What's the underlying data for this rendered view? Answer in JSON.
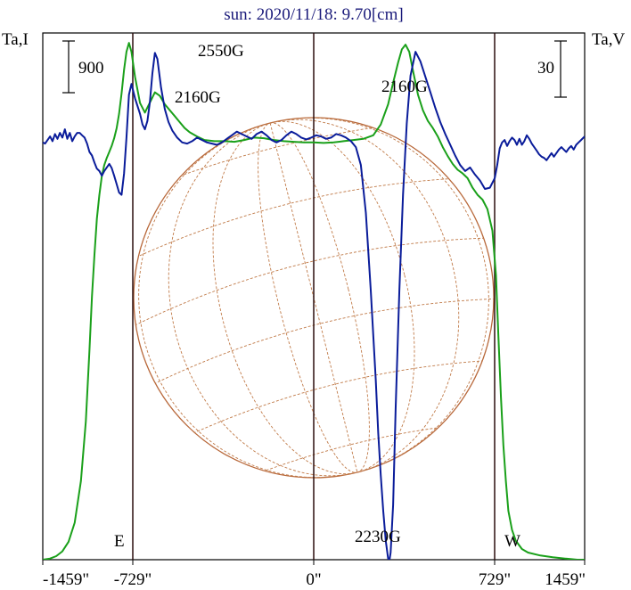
{
  "chart_data": {
    "type": "line",
    "title": "sun: 2020/11/18: 9.70[cm]",
    "y_left_label": "Ta,I",
    "y_right_label": "Ta,V",
    "scale_bar_left": "900",
    "scale_bar_right": "30",
    "x_ticks": [
      {
        "value": -1459,
        "label": "-1459\""
      },
      {
        "value": -729,
        "label": "-729\""
      },
      {
        "value": 0,
        "label": "0\""
      },
      {
        "value": 729,
        "label": "729\""
      },
      {
        "value": 1459,
        "label": "1459\""
      }
    ],
    "xlim": [
      -1459,
      1459
    ],
    "limb_markers": [
      {
        "x": -729,
        "label": ""
      },
      {
        "x": 0,
        "label": ""
      },
      {
        "x": 729,
        "label": ""
      }
    ],
    "limb_edges": {
      "east_x": -729,
      "west_x": 729,
      "east_label": "E",
      "west_label": "W"
    },
    "annotations": [
      {
        "text": "2550G"
      },
      {
        "text": "2160G"
      },
      {
        "text": "2160G"
      },
      {
        "text": "2230G"
      }
    ],
    "colors": {
      "stokes_i": "#1aa01a",
      "stokes_v": "#0a1c9a",
      "disk": "#b8683a",
      "axes": "#000000",
      "limb": "#2b0f0f"
    },
    "series": [
      {
        "name": "",
        "color": "#1aa01a",
        "points": [
          [
            -1459,
            28
          ],
          [
            -1400,
            30
          ],
          [
            -1350,
            34
          ],
          [
            -1300,
            42
          ],
          [
            -1250,
            58
          ],
          [
            -1200,
            90
          ],
          [
            -1150,
            160
          ],
          [
            -1110,
            260
          ],
          [
            -1080,
            380
          ],
          [
            -1060,
            470
          ],
          [
            -1040,
            540
          ],
          [
            -1020,
            600
          ],
          [
            -1000,
            640
          ],
          [
            -980,
            672
          ],
          [
            -960,
            690
          ],
          [
            -940,
            702
          ],
          [
            -920,
            712
          ],
          [
            -900,
            722
          ],
          [
            -880,
            735
          ],
          [
            -860,
            752
          ],
          [
            -840,
            776
          ],
          [
            -820,
            810
          ],
          [
            -800,
            850
          ],
          [
            -780,
            880
          ],
          [
            -760,
            895
          ],
          [
            -740,
            880
          ],
          [
            -720,
            838
          ],
          [
            -700,
            794
          ],
          [
            -680,
            778
          ],
          [
            -660,
            795
          ],
          [
            -640,
            812
          ],
          [
            -620,
            806
          ],
          [
            -600,
            792
          ],
          [
            -580,
            782
          ],
          [
            -560,
            772
          ],
          [
            -540,
            762
          ],
          [
            -520,
            752
          ],
          [
            -500,
            745
          ],
          [
            -470,
            738
          ],
          [
            -440,
            732
          ],
          [
            -400,
            730
          ],
          [
            -360,
            730
          ],
          [
            -320,
            729
          ],
          [
            -280,
            732
          ],
          [
            -240,
            736
          ],
          [
            -200,
            735
          ],
          [
            -160,
            732
          ],
          [
            -120,
            730
          ],
          [
            -80,
            729
          ],
          [
            -40,
            728
          ],
          [
            0,
            728
          ],
          [
            40,
            727
          ],
          [
            80,
            728
          ],
          [
            120,
            730
          ],
          [
            160,
            732
          ],
          [
            200,
            734
          ],
          [
            240,
            740
          ],
          [
            270,
            758
          ],
          [
            300,
            792
          ],
          [
            320,
            828
          ],
          [
            340,
            862
          ],
          [
            355,
            884
          ],
          [
            370,
            892
          ],
          [
            385,
            880
          ],
          [
            400,
            848
          ],
          [
            420,
            808
          ],
          [
            440,
            782
          ],
          [
            460,
            764
          ],
          [
            480,
            752
          ],
          [
            500,
            738
          ],
          [
            520,
            720
          ],
          [
            540,
            705
          ],
          [
            560,
            692
          ],
          [
            580,
            682
          ],
          [
            600,
            676
          ],
          [
            620,
            668
          ],
          [
            640,
            652
          ],
          [
            660,
            640
          ],
          [
            680,
            632
          ],
          [
            700,
            616
          ],
          [
            720,
            580
          ],
          [
            740,
            505
          ],
          [
            760,
            400
          ],
          [
            780,
            300
          ],
          [
            800,
            220
          ],
          [
            820,
            160
          ],
          [
            840,
            110
          ],
          [
            870,
            78
          ],
          [
            900,
            60
          ],
          [
            950,
            46
          ],
          [
            1000,
            40
          ],
          [
            1100,
            35
          ],
          [
            1200,
            32
          ],
          [
            1300,
            30
          ],
          [
            1400,
            28
          ],
          [
            1459,
            28
          ]
        ]
      },
      {
        "name": "",
        "color": "#0a1c9a",
        "points": [
          [
            -1459,
            728
          ],
          [
            -1440,
            726
          ],
          [
            -1420,
            732
          ],
          [
            -1400,
            738
          ],
          [
            -1380,
            730
          ],
          [
            -1360,
            742
          ],
          [
            -1340,
            734
          ],
          [
            -1320,
            744
          ],
          [
            -1300,
            736
          ],
          [
            -1280,
            750
          ],
          [
            -1260,
            734
          ],
          [
            -1240,
            744
          ],
          [
            -1220,
            730
          ],
          [
            -1200,
            738
          ],
          [
            -1180,
            744
          ],
          [
            -1160,
            744
          ],
          [
            -1140,
            740
          ],
          [
            -1120,
            736
          ],
          [
            -1100,
            726
          ],
          [
            -1080,
            712
          ],
          [
            -1060,
            706
          ],
          [
            -1040,
            694
          ],
          [
            -1020,
            684
          ],
          [
            -1000,
            680
          ],
          [
            -980,
            672
          ],
          [
            -960,
            680
          ],
          [
            -940,
            686
          ],
          [
            -920,
            692
          ],
          [
            -900,
            685
          ],
          [
            -880,
            672
          ],
          [
            -860,
            658
          ],
          [
            -840,
            644
          ],
          [
            -820,
            640
          ],
          [
            -800,
            676
          ],
          [
            -780,
            736
          ],
          [
            -760,
            808
          ],
          [
            -740,
            826
          ],
          [
            -720,
            802
          ],
          [
            -700,
            776
          ],
          [
            -690,
            758
          ],
          [
            -680,
            750
          ],
          [
            -670,
            764
          ],
          [
            -660,
            796
          ],
          [
            -650,
            844
          ],
          [
            -640,
            878
          ],
          [
            -630,
            868
          ],
          [
            -615,
            820
          ],
          [
            -600,
            784
          ],
          [
            -585,
            762
          ],
          [
            -570,
            748
          ],
          [
            -550,
            736
          ],
          [
            -530,
            728
          ],
          [
            -510,
            726
          ],
          [
            -490,
            730
          ],
          [
            -470,
            736
          ],
          [
            -450,
            732
          ],
          [
            -430,
            728
          ],
          [
            -410,
            726
          ],
          [
            -390,
            724
          ],
          [
            -370,
            728
          ],
          [
            -350,
            734
          ],
          [
            -330,
            740
          ],
          [
            -310,
            746
          ],
          [
            -290,
            742
          ],
          [
            -270,
            738
          ],
          [
            -250,
            734
          ],
          [
            -230,
            742
          ],
          [
            -210,
            746
          ],
          [
            -190,
            740
          ],
          [
            -170,
            732
          ],
          [
            -150,
            728
          ],
          [
            -130,
            732
          ],
          [
            -110,
            740
          ],
          [
            -90,
            746
          ],
          [
            -70,
            742
          ],
          [
            -50,
            736
          ],
          [
            -30,
            733
          ],
          [
            -10,
            736
          ],
          [
            10,
            740
          ],
          [
            30,
            738
          ],
          [
            50,
            734
          ],
          [
            70,
            736
          ],
          [
            90,
            742
          ],
          [
            110,
            740
          ],
          [
            130,
            736
          ],
          [
            150,
            730
          ],
          [
            170,
            720
          ],
          [
            190,
            690
          ],
          [
            210,
            610
          ],
          [
            230,
            480
          ],
          [
            250,
            330
          ],
          [
            260,
            240
          ],
          [
            270,
            170
          ],
          [
            280,
            110
          ],
          [
            290,
            60
          ],
          [
            300,
            30
          ],
          [
            305,
            26
          ],
          [
            310,
            40
          ],
          [
            320,
            120
          ],
          [
            330,
            280
          ],
          [
            345,
            480
          ],
          [
            360,
            640
          ],
          [
            375,
            760
          ],
          [
            390,
            840
          ],
          [
            410,
            880
          ],
          [
            430,
            864
          ],
          [
            450,
            838
          ],
          [
            470,
            812
          ],
          [
            490,
            786
          ],
          [
            510,
            762
          ],
          [
            530,
            742
          ],
          [
            550,
            724
          ],
          [
            570,
            706
          ],
          [
            590,
            690
          ],
          [
            610,
            680
          ],
          [
            630,
            686
          ],
          [
            650,
            674
          ],
          [
            670,
            664
          ],
          [
            690,
            650
          ],
          [
            710,
            652
          ],
          [
            730,
            668
          ],
          [
            750,
            690
          ],
          [
            770,
            718
          ],
          [
            790,
            728
          ],
          [
            810,
            732
          ],
          [
            830,
            722
          ],
          [
            850,
            730
          ],
          [
            870,
            736
          ],
          [
            890,
            732
          ],
          [
            910,
            724
          ],
          [
            930,
            734
          ],
          [
            950,
            724
          ],
          [
            970,
            730
          ],
          [
            990,
            740
          ],
          [
            1010,
            734
          ],
          [
            1030,
            726
          ],
          [
            1050,
            720
          ],
          [
            1070,
            714
          ],
          [
            1090,
            708
          ],
          [
            1110,
            704
          ],
          [
            1130,
            702
          ],
          [
            1150,
            698
          ],
          [
            1170,
            704
          ],
          [
            1190,
            710
          ],
          [
            1210,
            704
          ],
          [
            1230,
            710
          ],
          [
            1250,
            716
          ],
          [
            1270,
            720
          ],
          [
            1290,
            716
          ],
          [
            1310,
            712
          ],
          [
            1330,
            718
          ],
          [
            1350,
            722
          ],
          [
            1370,
            716
          ],
          [
            1390,
            724
          ],
          [
            1410,
            728
          ],
          [
            1430,
            732
          ],
          [
            1459,
            738
          ]
        ]
      }
    ]
  }
}
